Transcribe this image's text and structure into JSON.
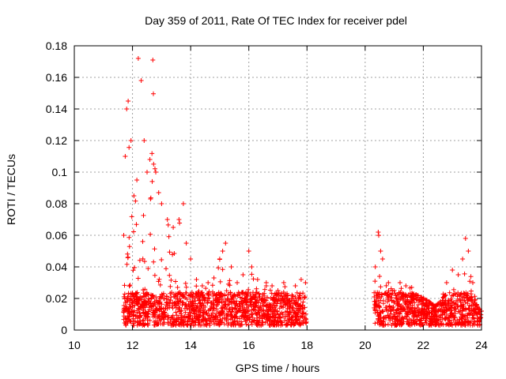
{
  "chart_data": {
    "type": "scatter",
    "title": "Day 359 of 2011, Rate Of TEC Index for receiver pdel",
    "xlabel": "GPS time / hours",
    "ylabel": "ROTI / TECUs",
    "xlim": [
      10,
      24
    ],
    "ylim": [
      0,
      0.18
    ],
    "xticks": [
      "10",
      "12",
      "14",
      "16",
      "18",
      "20",
      "22",
      "24"
    ],
    "yticks": [
      "0",
      "0.02",
      "0.04",
      "0.06",
      "0.08",
      "0.1",
      "0.12",
      "0.14",
      "0.16",
      "0.18"
    ],
    "grid": true,
    "marker": "+",
    "color": "#ff0000",
    "envelope": [
      [
        11.7,
        0.06
      ],
      [
        11.75,
        0.11
      ],
      [
        11.8,
        0.14
      ],
      [
        11.85,
        0.145
      ],
      [
        11.95,
        0.12
      ],
      [
        12.05,
        0.085
      ],
      [
        12.15,
        0.095
      ],
      [
        12.2,
        0.172
      ],
      [
        12.3,
        0.158
      ],
      [
        12.4,
        0.12
      ],
      [
        12.5,
        0.1
      ],
      [
        12.6,
        0.108
      ],
      [
        12.7,
        0.171
      ],
      [
        12.8,
        0.1
      ],
      [
        12.9,
        0.087
      ],
      [
        13.0,
        0.08
      ],
      [
        13.2,
        0.07
      ],
      [
        13.4,
        0.065
      ],
      [
        13.6,
        0.07
      ],
      [
        13.75,
        0.08
      ],
      [
        13.85,
        0.055
      ],
      [
        14.0,
        0.045
      ],
      [
        14.2,
        0.032
      ],
      [
        14.4,
        0.028
      ],
      [
        14.6,
        0.03
      ],
      [
        14.8,
        0.033
      ],
      [
        15.0,
        0.045
      ],
      [
        15.1,
        0.05
      ],
      [
        15.2,
        0.055
      ],
      [
        15.4,
        0.04
      ],
      [
        15.6,
        0.03
      ],
      [
        15.8,
        0.035
      ],
      [
        16.0,
        0.05
      ],
      [
        16.1,
        0.04
      ],
      [
        16.3,
        0.032
      ],
      [
        16.6,
        0.03
      ],
      [
        16.8,
        0.028
      ],
      [
        17.0,
        0.025
      ],
      [
        17.2,
        0.03
      ],
      [
        17.4,
        0.018
      ],
      [
        17.6,
        0.028
      ],
      [
        17.8,
        0.032
      ],
      [
        17.95,
        0.03
      ],
      [
        20.35,
        0.04
      ],
      [
        20.45,
        0.062
      ],
      [
        20.6,
        0.045
      ],
      [
        20.8,
        0.03
      ],
      [
        21.0,
        0.025
      ],
      [
        21.2,
        0.03
      ],
      [
        21.4,
        0.028
      ],
      [
        21.6,
        0.027
      ],
      [
        21.8,
        0.022
      ],
      [
        22.0,
        0.02
      ],
      [
        22.2,
        0.018
      ],
      [
        22.4,
        0.015
      ],
      [
        22.6,
        0.018
      ],
      [
        22.8,
        0.03
      ],
      [
        23.0,
        0.038
      ],
      [
        23.2,
        0.035
      ],
      [
        23.35,
        0.045
      ],
      [
        23.45,
        0.058
      ],
      [
        23.55,
        0.05
      ],
      [
        23.7,
        0.03
      ],
      [
        23.85,
        0.015
      ],
      [
        24.0,
        0.012
      ]
    ],
    "floor": 0.003,
    "segments": [
      [
        11.68,
        17.98
      ],
      [
        20.3,
        24.0
      ]
    ],
    "point_count": 2200
  }
}
